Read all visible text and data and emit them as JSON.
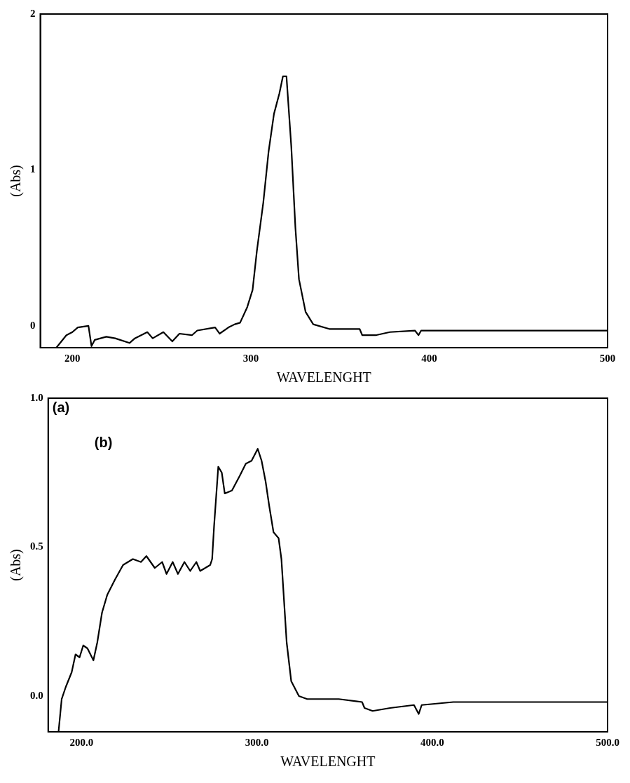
{
  "chart_data": [
    {
      "type": "line",
      "xlabel": "WAVELENGHT",
      "ylabel": "(Abs)",
      "color": "#000000",
      "marker": "none",
      "line_style": "solid",
      "grid": false,
      "legend": false,
      "x": [
        191,
        196.6,
        200,
        203,
        209,
        210.7,
        212.5,
        219,
        224,
        232,
        235,
        242,
        245,
        251,
        256,
        260,
        267,
        270,
        280,
        282.5,
        287.5,
        291,
        294,
        298,
        301,
        303.4,
        307,
        310,
        313,
        316,
        318,
        320,
        322.7,
        325,
        327,
        330.7,
        335,
        344,
        361,
        362.5,
        370,
        378,
        392,
        394,
        395.5,
        417,
        500
      ],
      "values": [
        -0.14,
        -0.06,
        -0.04,
        -0.01,
        0.0,
        -0.13,
        -0.09,
        -0.07,
        -0.08,
        -0.11,
        -0.08,
        -0.04,
        -0.08,
        -0.04,
        -0.1,
        -0.05,
        -0.06,
        -0.03,
        -0.01,
        -0.05,
        -0.01,
        0.01,
        0.02,
        0.12,
        0.23,
        0.48,
        0.79,
        1.12,
        1.36,
        1.49,
        1.6,
        1.6,
        1.15,
        0.63,
        0.3,
        0.09,
        0.01,
        -0.02,
        -0.02,
        -0.06,
        -0.06,
        -0.04,
        -0.03,
        -0.06,
        -0.03,
        -0.03,
        -0.03
      ],
      "xlim": [
        182,
        500
      ],
      "ylim": [
        -0.14,
        2
      ],
      "xticks": [
        200,
        300,
        400,
        500
      ],
      "yticks": [
        0,
        1,
        2
      ]
    },
    {
      "type": "line",
      "xlabel": "WAVELENGHT",
      "ylabel": "(Abs)",
      "color": "#000000",
      "marker": "none",
      "line_style": "solid",
      "grid": false,
      "legend": false,
      "annotations": [
        "(a)",
        "(b)"
      ],
      "x": [
        186.9,
        188.7,
        191,
        194.4,
        196.6,
        198.9,
        201,
        203.4,
        206.8,
        209,
        211.7,
        214.7,
        219,
        223.7,
        229.3,
        233.9,
        237,
        241.8,
        246,
        248.5,
        252,
        255,
        258.7,
        262,
        265.5,
        267.7,
        273.4,
        274.5,
        275.6,
        278,
        280,
        281.7,
        285.8,
        290.3,
        293.7,
        297,
        300.5,
        302.7,
        305,
        307,
        309.5,
        312.4,
        314,
        317,
        319.6,
        324,
        328.7,
        346.7,
        360,
        361.4,
        366,
        376,
        389.6,
        392.3,
        394,
        412,
        500
      ],
      "values": [
        -0.12,
        -0.01,
        0.03,
        0.08,
        0.14,
        0.13,
        0.17,
        0.16,
        0.12,
        0.18,
        0.28,
        0.34,
        0.39,
        0.44,
        0.46,
        0.45,
        0.47,
        0.43,
        0.45,
        0.41,
        0.45,
        0.41,
        0.45,
        0.42,
        0.45,
        0.42,
        0.44,
        0.46,
        0.57,
        0.77,
        0.75,
        0.68,
        0.69,
        0.74,
        0.78,
        0.79,
        0.83,
        0.79,
        0.72,
        0.64,
        0.55,
        0.53,
        0.46,
        0.18,
        0.05,
        0.0,
        -0.01,
        -0.01,
        -0.02,
        -0.04,
        -0.05,
        -0.04,
        -0.03,
        -0.06,
        -0.03,
        -0.02,
        -0.02
      ],
      "xlim": [
        181,
        500
      ],
      "ylim": [
        -0.12,
        1.0
      ],
      "xticks": [
        {
          "value": 200,
          "label": "200.0"
        },
        {
          "value": 300,
          "label": "300.0"
        },
        {
          "value": 400,
          "label": "400.0"
        },
        {
          "value": 500,
          "label": "500.0"
        }
      ],
      "yticks": [
        {
          "value": 0,
          "label": "0.0"
        },
        {
          "value": 0.5,
          "label": "0.5"
        },
        {
          "value": 1,
          "label": "1.0"
        }
      ]
    }
  ]
}
